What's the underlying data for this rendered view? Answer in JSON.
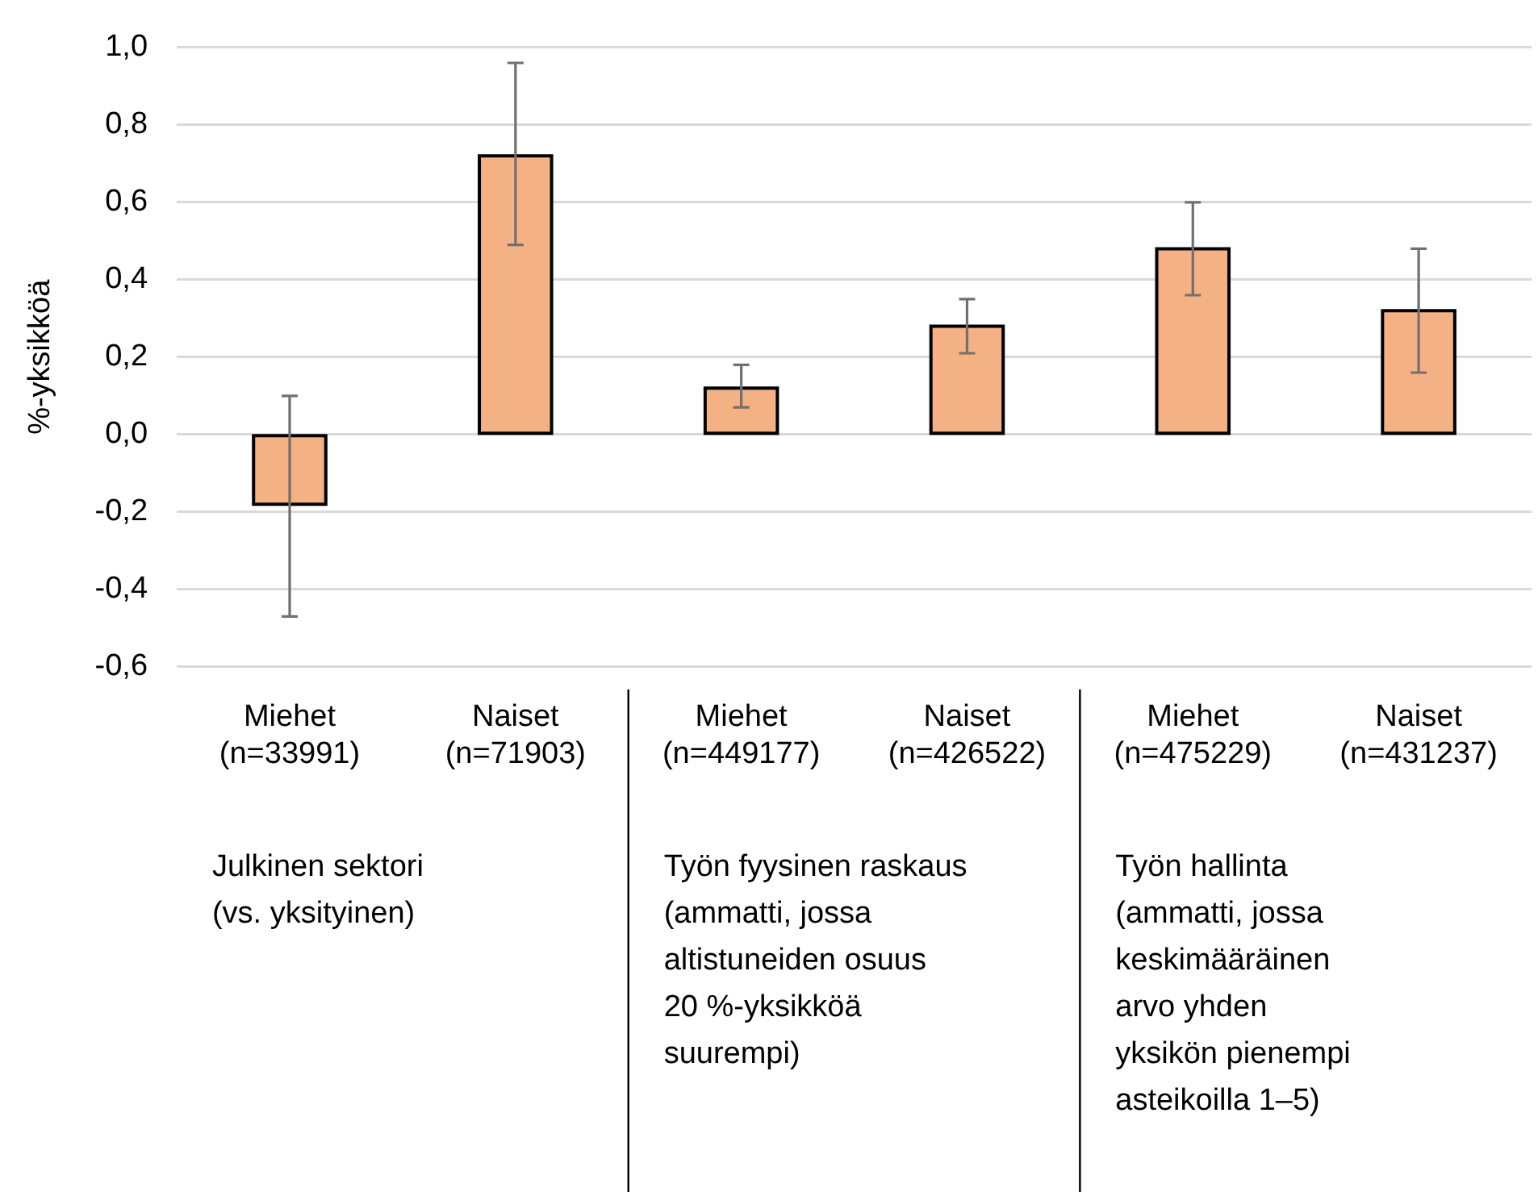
{
  "chart_data": {
    "type": "bar",
    "ylabel": "%-yksikköä",
    "categories": [
      "Miehet\n(n=33991)",
      "Naiset\n(n=71903)",
      "Miehet\n(n=449177)",
      "Naiset\n(n=426522)",
      "Miehet\n(n=475229)",
      "Naiset\n(n=431237)"
    ],
    "values": [
      -0.18,
      0.72,
      0.12,
      0.28,
      0.48,
      0.32
    ],
    "errors": [
      [
        -0.47,
        0.1
      ],
      [
        0.49,
        0.96
      ],
      [
        0.07,
        0.18
      ],
      [
        0.21,
        0.35
      ],
      [
        0.36,
        0.6
      ],
      [
        0.16,
        0.48
      ]
    ],
    "color": "#f4b183",
    "ylim": [
      -0.6,
      1.0
    ],
    "yticks": [
      {
        "value": -0.6,
        "label": "-0,6"
      },
      {
        "value": -0.4,
        "label": "-0,4"
      },
      {
        "value": -0.2,
        "label": "-0,2"
      },
      {
        "value": 0,
        "label": "0,0"
      },
      {
        "value": 0.2,
        "label": "0,2"
      },
      {
        "value": 0.4,
        "label": "0,4"
      },
      {
        "value": 0.6,
        "label": "0,6"
      },
      {
        "value": 0.8,
        "label": "0,8"
      },
      {
        "value": 1.0,
        "label": "1,0"
      }
    ],
    "grid": "y",
    "legend": false,
    "annotations": [
      "Julkinen sektori\n(vs. yksityinen)",
      "Työn fyysinen raskaus\n(ammatti, jossa\naltistuneiden osuus\n20 %-yksikköä\nsuurempi)",
      "Työn hallinta\n(ammatti, jossa\nkeskimääräinen\narvo yhden\nyksikön pienempi\nasteikoilla 1–5)"
    ]
  }
}
